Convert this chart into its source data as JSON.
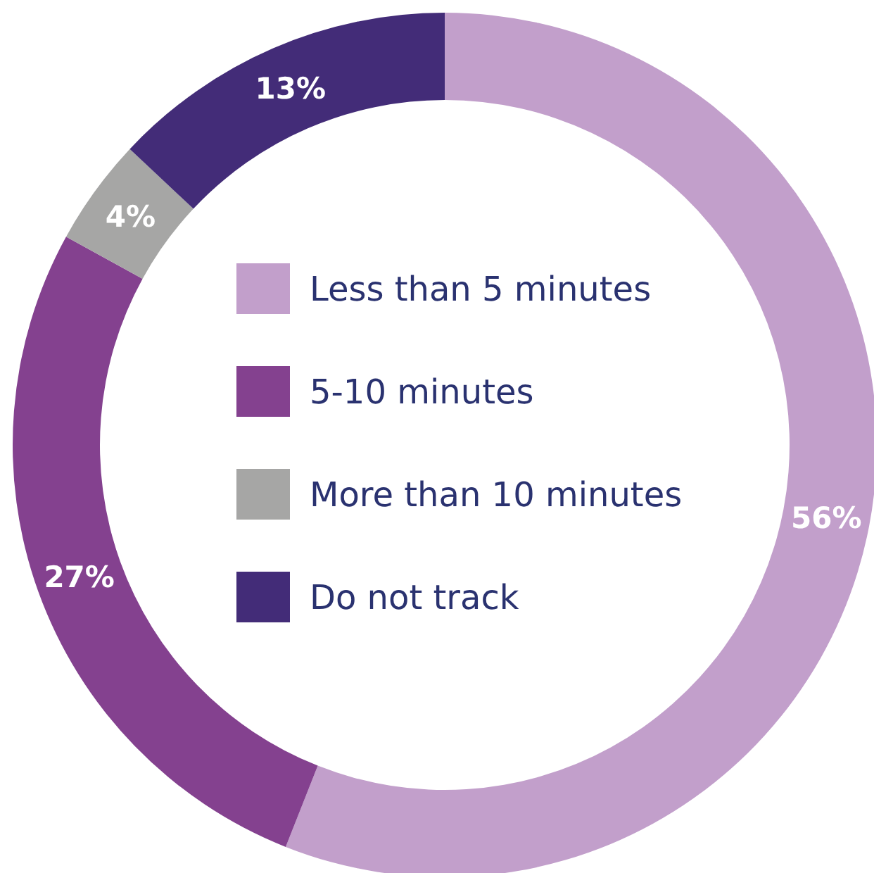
{
  "chart_data": {
    "type": "donut",
    "categories": [
      "Less than 5 minutes",
      "5-10 minutes",
      "More than 10 minutes",
      "Do not track"
    ],
    "values": [
      56,
      27,
      4,
      13
    ],
    "colors": [
      "#c29fcb",
      "#84418f",
      "#a6a6a5",
      "#432c78"
    ],
    "value_labels": [
      "56%",
      "27%",
      "4%",
      "13%"
    ],
    "legend": "center"
  }
}
